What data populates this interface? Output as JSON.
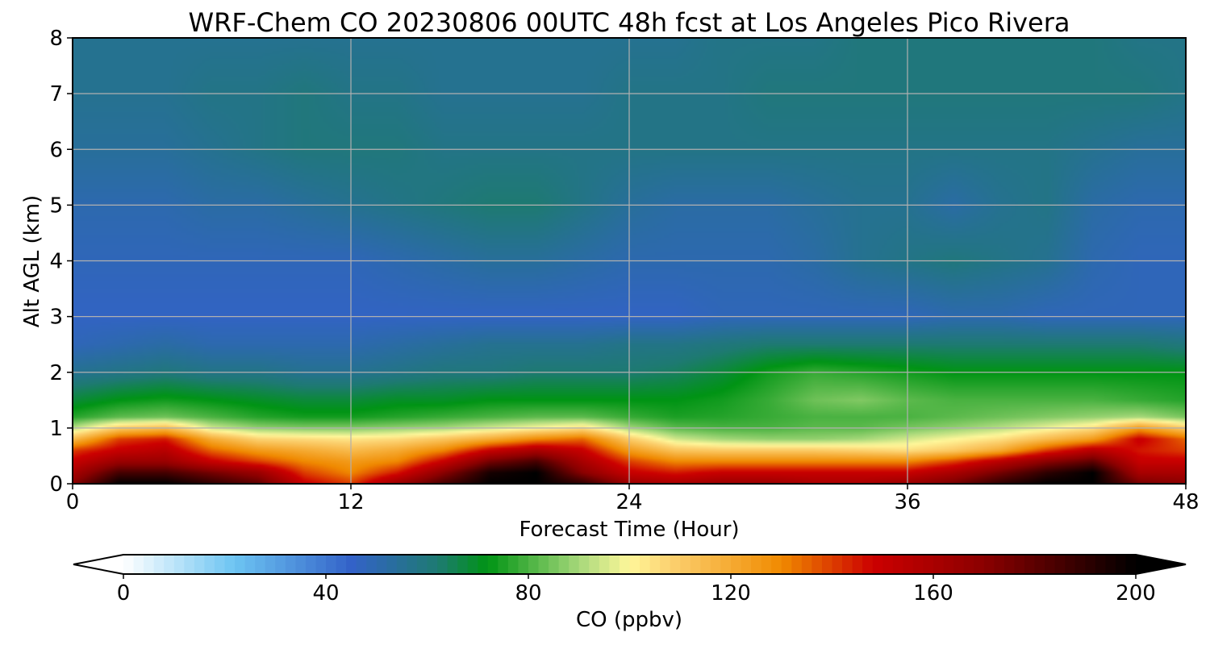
{
  "chart_data": {
    "type": "heatmap",
    "title": "WRF-Chem CO  20230806 00UTC 48h fcst at Los Angeles Pico Rivera",
    "xlabel": "Forecast Time (Hour)",
    "ylabel": "Alt AGL (km)",
    "xlim": [
      0,
      48
    ],
    "ylim": [
      0,
      8
    ],
    "x_ticks": [
      0,
      12,
      24,
      36,
      48
    ],
    "y_ticks": [
      0,
      1,
      2,
      3,
      4,
      5,
      6,
      7,
      8
    ],
    "grid": true,
    "colorbar": {
      "label": "CO  (ppbv)",
      "range": [
        0,
        200
      ],
      "ticks": [
        0,
        40,
        80,
        120,
        160,
        200
      ],
      "extend": "both",
      "orientation": "horizontal",
      "stops": [
        {
          "v": 0,
          "c": "#ffffff"
        },
        {
          "v": 22,
          "c": "#6cc4f2"
        },
        {
          "v": 45,
          "c": "#3362c8"
        },
        {
          "v": 62,
          "c": "#1e7a72"
        },
        {
          "v": 72,
          "c": "#009414"
        },
        {
          "v": 90,
          "c": "#a6d87a"
        },
        {
          "v": 100,
          "c": "#fff79a"
        },
        {
          "v": 108,
          "c": "#fcd170"
        },
        {
          "v": 130,
          "c": "#f08a00"
        },
        {
          "v": 148,
          "c": "#cc0000"
        },
        {
          "v": 170,
          "c": "#8b0000"
        },
        {
          "v": 200,
          "c": "#000000"
        }
      ]
    },
    "x": [
      0,
      2,
      4,
      6,
      8,
      10,
      12,
      14,
      16,
      18,
      20,
      22,
      24,
      26,
      28,
      30,
      32,
      34,
      36,
      38,
      40,
      42,
      44,
      46,
      48
    ],
    "altitude_km": [
      0,
      0.2,
      0.4,
      0.6,
      0.8,
      1.0,
      1.2,
      1.5,
      2.0,
      2.5,
      3,
      4,
      5,
      6,
      7,
      8
    ],
    "values": [
      [
        170,
        200,
        200,
        190,
        180,
        150,
        140,
        165,
        185,
        200,
        200,
        190,
        165,
        160,
        165,
        165,
        160,
        160,
        165,
        175,
        190,
        200,
        200,
        175,
        170
      ],
      [
        160,
        185,
        185,
        175,
        165,
        140,
        130,
        145,
        170,
        195,
        200,
        170,
        150,
        145,
        150,
        150,
        150,
        150,
        150,
        160,
        175,
        190,
        200,
        160,
        160
      ],
      [
        150,
        165,
        165,
        150,
        140,
        130,
        125,
        130,
        150,
        175,
        185,
        160,
        140,
        130,
        130,
        130,
        130,
        130,
        130,
        140,
        155,
        170,
        180,
        150,
        150
      ],
      [
        140,
        150,
        155,
        135,
        125,
        120,
        115,
        120,
        130,
        150,
        160,
        150,
        125,
        112,
        110,
        110,
        110,
        108,
        105,
        110,
        120,
        140,
        155,
        145,
        140
      ],
      [
        115,
        140,
        145,
        120,
        108,
        106,
        104,
        106,
        112,
        120,
        130,
        135,
        110,
        95,
        90,
        88,
        88,
        90,
        95,
        100,
        105,
        115,
        125,
        150,
        135
      ],
      [
        92,
        110,
        115,
        95,
        88,
        86,
        86,
        88,
        90,
        95,
        100,
        105,
        90,
        82,
        80,
        80,
        82,
        82,
        85,
        88,
        92,
        98,
        105,
        125,
        110
      ],
      [
        76,
        82,
        84,
        80,
        76,
        74,
        74,
        76,
        78,
        80,
        82,
        82,
        78,
        75,
        76,
        78,
        80,
        80,
        80,
        82,
        84,
        86,
        88,
        90,
        85
      ],
      [
        68,
        72,
        74,
        72,
        70,
        68,
        68,
        70,
        70,
        72,
        72,
        72,
        72,
        72,
        74,
        78,
        84,
        86,
        82,
        80,
        80,
        80,
        80,
        78,
        76
      ],
      [
        56,
        58,
        60,
        58,
        58,
        56,
        56,
        58,
        60,
        60,
        62,
        62,
        62,
        64,
        68,
        74,
        78,
        76,
        74,
        72,
        72,
        72,
        72,
        72,
        72
      ],
      [
        48,
        50,
        52,
        50,
        50,
        50,
        50,
        52,
        54,
        56,
        56,
        56,
        58,
        58,
        60,
        62,
        62,
        62,
        62,
        62,
        62,
        62,
        62,
        62,
        60
      ],
      [
        46,
        46,
        46,
        46,
        46,
        46,
        46,
        46,
        46,
        46,
        46,
        46,
        46,
        46,
        48,
        48,
        48,
        48,
        48,
        50,
        50,
        48,
        48,
        48,
        48
      ],
      [
        48,
        48,
        48,
        48,
        48,
        48,
        48,
        50,
        52,
        54,
        54,
        52,
        50,
        50,
        50,
        50,
        52,
        56,
        58,
        60,
        58,
        56,
        50,
        48,
        48
      ],
      [
        50,
        50,
        50,
        52,
        52,
        54,
        56,
        58,
        60,
        62,
        62,
        58,
        54,
        52,
        52,
        52,
        54,
        56,
        56,
        52,
        56,
        58,
        52,
        50,
        50
      ],
      [
        54,
        54,
        54,
        56,
        58,
        60,
        60,
        60,
        58,
        58,
        58,
        58,
        58,
        58,
        58,
        58,
        58,
        58,
        58,
        58,
        58,
        58,
        56,
        54,
        54
      ],
      [
        56,
        56,
        56,
        58,
        58,
        60,
        58,
        58,
        56,
        56,
        56,
        56,
        58,
        58,
        58,
        60,
        60,
        60,
        60,
        60,
        60,
        60,
        60,
        60,
        58
      ],
      [
        56,
        56,
        56,
        56,
        56,
        56,
        56,
        56,
        56,
        56,
        56,
        56,
        56,
        56,
        58,
        58,
        58,
        60,
        60,
        60,
        60,
        60,
        60,
        58,
        58
      ]
    ]
  }
}
